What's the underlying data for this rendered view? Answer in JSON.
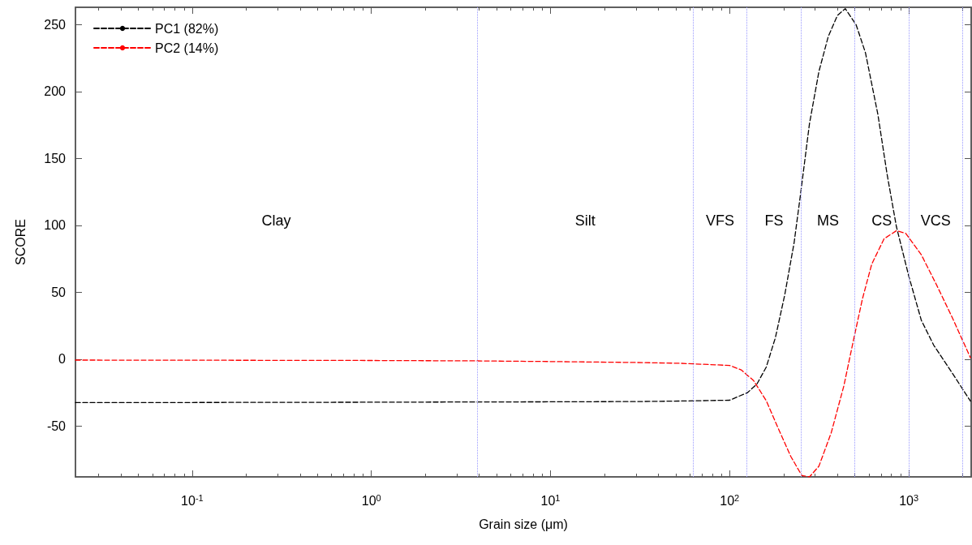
{
  "chart_data": {
    "type": "line",
    "xlabel": "Grain size (μm)",
    "ylabel": "SCORE",
    "log": "x",
    "xlim": [
      0.0223,
      2230
    ],
    "ylim": [
      -88,
      263
    ],
    "xticks": [
      {
        "value": 0.1,
        "label": "10$^{-1}$"
      },
      {
        "value": 1,
        "label": "10$^{0}$"
      },
      {
        "value": 10,
        "label": "10$^{1}$"
      },
      {
        "value": 100,
        "label": "10$^{2}$"
      },
      {
        "value": 1000,
        "label": "10$^{3}$"
      }
    ],
    "yticks": [
      -50,
      0,
      50,
      100,
      150,
      200,
      250
    ],
    "grid": false,
    "legend": "top left",
    "marker": "none",
    "series": [
      {
        "name": "PC1 (82%)",
        "color": "#000000",
        "line_style": "dashed",
        "x": [
          0.0223,
          0.1,
          1,
          3.9,
          10,
          30,
          48,
          100,
          126,
          142,
          160,
          180,
          203,
          229,
          248,
          279,
          315,
          355,
          400,
          442,
          508,
          573,
          672,
          757,
          853,
          1000,
          1175,
          1377,
          1750,
          2210
        ],
        "values": [
          -32.5,
          -32.4,
          -32.2,
          -32,
          -31.9,
          -31.7,
          -31.4,
          -30.7,
          -25,
          -18.6,
          -6,
          16,
          48,
          87,
          122,
          176,
          215,
          241,
          257,
          262,
          250,
          229,
          183,
          138,
          99,
          62,
          29,
          10.5,
          -10.5,
          -31.4
        ]
      },
      {
        "name": "PC2 (14%)",
        "color": "#ff0000",
        "line_style": "dashed",
        "x": [
          0.0223,
          0.1,
          1,
          3.9,
          10,
          30,
          53,
          100,
          116,
          136,
          160,
          187,
          220,
          253,
          279,
          315,
          369,
          434,
          489,
          551,
          621,
          728,
          853,
          962,
          1175,
          1435,
          1750,
          2210
        ],
        "values": [
          -0.7,
          -0.8,
          -1,
          -1.3,
          -1.8,
          -2.5,
          -3.1,
          -4.7,
          -8,
          -16,
          -31,
          -52,
          -73,
          -87,
          -88,
          -80,
          -55,
          -20,
          13,
          45,
          71,
          90,
          96,
          94,
          78,
          55,
          31,
          1
        ]
      }
    ],
    "ref_lines": [
      {
        "axis": "x",
        "value": 3.9,
        "color": "#9999ff",
        "line_style": "dotted"
      },
      {
        "axis": "x",
        "value": 62.5,
        "color": "#9999ff",
        "line_style": "dotted"
      },
      {
        "axis": "x",
        "value": 125,
        "color": "#9999ff",
        "line_style": "dotted"
      },
      {
        "axis": "x",
        "value": 250,
        "color": "#9999ff",
        "line_style": "dotted"
      },
      {
        "axis": "x",
        "value": 500,
        "color": "#9999ff",
        "line_style": "dotted"
      },
      {
        "axis": "x",
        "value": 1000,
        "color": "#9999ff",
        "line_style": "dotted"
      },
      {
        "axis": "x",
        "value": 2000,
        "color": "#9999ff",
        "line_style": "dotted"
      }
    ],
    "annotations": [
      "Clay",
      "Silt",
      "VFS",
      "FS",
      "MS",
      "CS",
      "VCS"
    ]
  }
}
